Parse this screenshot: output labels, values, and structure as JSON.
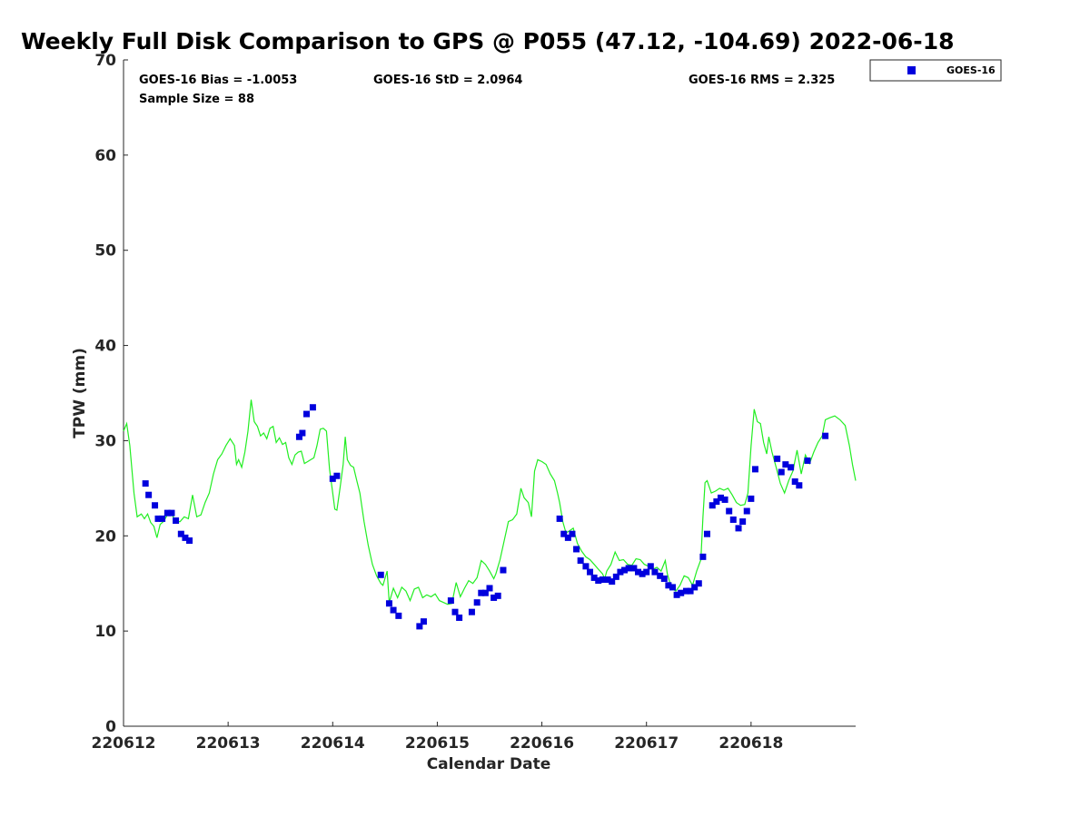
{
  "chart_data": {
    "type": "scatter",
    "title": "Weekly Full Disk Comparison to GPS @ P055 (47.12, -104.69) 2022-06-18",
    "xlabel": "Calendar Date",
    "ylabel": "TPW (mm)",
    "xlim": [
      0,
      7
    ],
    "ylim": [
      0,
      70
    ],
    "x_ticks": [
      0,
      1,
      2,
      3,
      4,
      5,
      6
    ],
    "x_tick_labels": [
      "220612",
      "220613",
      "220614",
      "220615",
      "220616",
      "220617",
      "220618"
    ],
    "y_ticks": [
      0,
      10,
      20,
      30,
      40,
      50,
      60,
      70
    ],
    "y_tick_labels": [
      "0",
      "10",
      "20",
      "30",
      "40",
      "50",
      "60",
      "70"
    ],
    "legend_position": "top-right, outside plot",
    "grid": false,
    "annotations": {
      "bias": "GOES-16 Bias = -1.0053",
      "std": "GOES-16 StD = 2.0964",
      "rms": "GOES-16 RMS = 2.325",
      "sample_size": "Sample Size = 88"
    },
    "series": [
      {
        "name": "GOES-16",
        "kind": "scatter",
        "marker": "square",
        "color": "#0000dd",
        "points": [
          [
            0.21,
            25.5
          ],
          [
            0.24,
            24.3
          ],
          [
            0.3,
            23.2
          ],
          [
            0.33,
            21.8
          ],
          [
            0.37,
            21.8
          ],
          [
            0.42,
            22.4
          ],
          [
            0.46,
            22.4
          ],
          [
            0.5,
            21.6
          ],
          [
            0.55,
            20.2
          ],
          [
            0.59,
            19.8
          ],
          [
            0.63,
            19.5
          ],
          [
            1.68,
            30.4
          ],
          [
            1.71,
            30.8
          ],
          [
            1.75,
            32.8
          ],
          [
            1.81,
            33.5
          ],
          [
            2.0,
            26.0
          ],
          [
            2.04,
            26.3
          ],
          [
            2.46,
            15.9
          ],
          [
            2.54,
            12.9
          ],
          [
            2.58,
            12.2
          ],
          [
            2.63,
            11.6
          ],
          [
            2.83,
            10.5
          ],
          [
            2.87,
            11.0
          ],
          [
            3.13,
            13.2
          ],
          [
            3.17,
            12.0
          ],
          [
            3.21,
            11.4
          ],
          [
            3.33,
            12.0
          ],
          [
            3.38,
            13.0
          ],
          [
            3.42,
            14.0
          ],
          [
            3.46,
            14.0
          ],
          [
            3.5,
            14.5
          ],
          [
            3.54,
            13.5
          ],
          [
            3.58,
            13.7
          ],
          [
            3.63,
            16.4
          ],
          [
            4.17,
            21.8
          ],
          [
            4.21,
            20.2
          ],
          [
            4.25,
            19.8
          ],
          [
            4.29,
            20.2
          ],
          [
            4.33,
            18.6
          ],
          [
            4.37,
            17.4
          ],
          [
            4.42,
            16.8
          ],
          [
            4.46,
            16.2
          ],
          [
            4.5,
            15.6
          ],
          [
            4.54,
            15.3
          ],
          [
            4.58,
            15.4
          ],
          [
            4.63,
            15.4
          ],
          [
            4.67,
            15.2
          ],
          [
            4.71,
            15.7
          ],
          [
            4.75,
            16.2
          ],
          [
            4.79,
            16.4
          ],
          [
            4.83,
            16.6
          ],
          [
            4.88,
            16.6
          ],
          [
            4.92,
            16.2
          ],
          [
            4.96,
            16.0
          ],
          [
            5.0,
            16.2
          ],
          [
            5.04,
            16.8
          ],
          [
            5.08,
            16.2
          ],
          [
            5.13,
            15.8
          ],
          [
            5.17,
            15.5
          ],
          [
            5.21,
            14.8
          ],
          [
            5.25,
            14.6
          ],
          [
            5.29,
            13.8
          ],
          [
            5.33,
            14.0
          ],
          [
            5.38,
            14.2
          ],
          [
            5.42,
            14.2
          ],
          [
            5.46,
            14.6
          ],
          [
            5.5,
            15.0
          ],
          [
            5.54,
            17.8
          ],
          [
            5.58,
            20.2
          ],
          [
            5.63,
            23.2
          ],
          [
            5.67,
            23.6
          ],
          [
            5.71,
            24.0
          ],
          [
            5.75,
            23.8
          ],
          [
            5.79,
            22.6
          ],
          [
            5.83,
            21.7
          ],
          [
            5.88,
            20.8
          ],
          [
            5.92,
            21.5
          ],
          [
            5.96,
            22.6
          ],
          [
            6.0,
            23.9
          ],
          [
            6.04,
            27.0
          ],
          [
            6.25,
            28.1
          ],
          [
            6.29,
            26.7
          ],
          [
            6.33,
            27.5
          ],
          [
            6.38,
            27.2
          ],
          [
            6.42,
            25.7
          ],
          [
            6.46,
            25.3
          ],
          [
            6.54,
            27.9
          ],
          [
            6.71,
            30.5
          ]
        ]
      },
      {
        "name": "",
        "kind": "line",
        "color": "#22ee22",
        "points": [
          [
            0.0,
            31.0
          ],
          [
            0.03,
            31.8
          ],
          [
            0.06,
            29.5
          ],
          [
            0.1,
            24.5
          ],
          [
            0.13,
            22.0
          ],
          [
            0.17,
            22.3
          ],
          [
            0.2,
            21.8
          ],
          [
            0.23,
            22.3
          ],
          [
            0.26,
            21.4
          ],
          [
            0.29,
            21.0
          ],
          [
            0.32,
            19.8
          ],
          [
            0.35,
            21.2
          ],
          [
            0.38,
            21.5
          ],
          [
            0.42,
            22.2
          ],
          [
            0.46,
            22.3
          ],
          [
            0.5,
            21.5
          ],
          [
            0.54,
            21.5
          ],
          [
            0.58,
            22.0
          ],
          [
            0.62,
            21.8
          ],
          [
            0.66,
            24.3
          ],
          [
            0.7,
            22.0
          ],
          [
            0.74,
            22.2
          ],
          [
            0.78,
            23.5
          ],
          [
            0.82,
            24.5
          ],
          [
            0.86,
            26.5
          ],
          [
            0.9,
            28.0
          ],
          [
            0.94,
            28.6
          ],
          [
            0.98,
            29.5
          ],
          [
            1.02,
            30.2
          ],
          [
            1.06,
            29.5
          ],
          [
            1.08,
            27.5
          ],
          [
            1.1,
            28.0
          ],
          [
            1.13,
            27.2
          ],
          [
            1.16,
            28.8
          ],
          [
            1.19,
            31.0
          ],
          [
            1.22,
            34.3
          ],
          [
            1.25,
            32.0
          ],
          [
            1.28,
            31.5
          ],
          [
            1.31,
            30.5
          ],
          [
            1.34,
            30.8
          ],
          [
            1.37,
            30.2
          ],
          [
            1.4,
            31.3
          ],
          [
            1.43,
            31.5
          ],
          [
            1.46,
            29.8
          ],
          [
            1.49,
            30.3
          ],
          [
            1.52,
            29.6
          ],
          [
            1.55,
            29.8
          ],
          [
            1.58,
            28.2
          ],
          [
            1.61,
            27.5
          ],
          [
            1.64,
            28.5
          ],
          [
            1.67,
            28.8
          ],
          [
            1.7,
            28.9
          ],
          [
            1.73,
            27.6
          ],
          [
            1.76,
            27.8
          ],
          [
            1.79,
            28.0
          ],
          [
            1.82,
            28.2
          ],
          [
            1.85,
            29.5
          ],
          [
            1.88,
            31.2
          ],
          [
            1.91,
            31.3
          ],
          [
            1.94,
            31.0
          ],
          [
            1.97,
            27.0
          ],
          [
            2.0,
            24.5
          ],
          [
            2.02,
            22.8
          ],
          [
            2.04,
            22.7
          ],
          [
            2.07,
            25.0
          ],
          [
            2.1,
            27.5
          ],
          [
            2.12,
            30.4
          ],
          [
            2.14,
            28.0
          ],
          [
            2.17,
            27.4
          ],
          [
            2.2,
            27.2
          ],
          [
            2.23,
            25.8
          ],
          [
            2.26,
            24.5
          ],
          [
            2.3,
            21.5
          ],
          [
            2.34,
            19.0
          ],
          [
            2.38,
            17.0
          ],
          [
            2.42,
            15.8
          ],
          [
            2.46,
            15.0
          ],
          [
            2.48,
            14.8
          ],
          [
            2.52,
            16.3
          ],
          [
            2.54,
            13.0
          ],
          [
            2.58,
            14.5
          ],
          [
            2.62,
            13.5
          ],
          [
            2.66,
            14.6
          ],
          [
            2.7,
            14.2
          ],
          [
            2.74,
            13.2
          ],
          [
            2.78,
            14.4
          ],
          [
            2.82,
            14.6
          ],
          [
            2.86,
            13.5
          ],
          [
            2.9,
            13.8
          ],
          [
            2.94,
            13.6
          ],
          [
            2.98,
            13.9
          ],
          [
            3.02,
            13.2
          ],
          [
            3.06,
            13.0
          ],
          [
            3.1,
            12.8
          ],
          [
            3.14,
            12.9
          ],
          [
            3.18,
            15.1
          ],
          [
            3.22,
            13.6
          ],
          [
            3.26,
            14.5
          ],
          [
            3.3,
            15.3
          ],
          [
            3.34,
            15.0
          ],
          [
            3.38,
            15.6
          ],
          [
            3.42,
            17.4
          ],
          [
            3.46,
            17.0
          ],
          [
            3.5,
            16.3
          ],
          [
            3.54,
            15.5
          ],
          [
            3.56,
            16.0
          ],
          [
            3.6,
            17.5
          ],
          [
            3.64,
            19.5
          ],
          [
            3.68,
            21.5
          ],
          [
            3.72,
            21.7
          ],
          [
            3.76,
            22.3
          ],
          [
            3.8,
            25.0
          ],
          [
            3.83,
            24.0
          ],
          [
            3.87,
            23.5
          ],
          [
            3.9,
            22.0
          ],
          [
            3.93,
            26.8
          ],
          [
            3.96,
            28.0
          ],
          [
            4.0,
            27.8
          ],
          [
            4.04,
            27.5
          ],
          [
            4.08,
            26.5
          ],
          [
            4.12,
            25.8
          ],
          [
            4.15,
            24.5
          ],
          [
            4.17,
            23.5
          ],
          [
            4.2,
            21.5
          ],
          [
            4.23,
            20.3
          ],
          [
            4.26,
            20.5
          ],
          [
            4.3,
            20.8
          ],
          [
            4.34,
            19.2
          ],
          [
            4.38,
            18.4
          ],
          [
            4.42,
            17.8
          ],
          [
            4.46,
            17.5
          ],
          [
            4.5,
            17.0
          ],
          [
            4.54,
            16.5
          ],
          [
            4.58,
            16.0
          ],
          [
            4.6,
            15.5
          ],
          [
            4.62,
            16.3
          ],
          [
            4.66,
            17.0
          ],
          [
            4.7,
            18.3
          ],
          [
            4.74,
            17.4
          ],
          [
            4.78,
            17.5
          ],
          [
            4.82,
            17.0
          ],
          [
            4.86,
            16.9
          ],
          [
            4.9,
            17.6
          ],
          [
            4.94,
            17.5
          ],
          [
            4.98,
            17.0
          ],
          [
            5.02,
            16.8
          ],
          [
            5.06,
            16.5
          ],
          [
            5.1,
            16.7
          ],
          [
            5.14,
            16.3
          ],
          [
            5.18,
            17.4
          ],
          [
            5.2,
            16.0
          ],
          [
            5.24,
            14.5
          ],
          [
            5.28,
            14.2
          ],
          [
            5.32,
            14.8
          ],
          [
            5.36,
            15.8
          ],
          [
            5.4,
            15.6
          ],
          [
            5.44,
            14.8
          ],
          [
            5.48,
            16.3
          ],
          [
            5.52,
            17.5
          ],
          [
            5.54,
            22.0
          ],
          [
            5.56,
            25.6
          ],
          [
            5.58,
            25.8
          ],
          [
            5.62,
            24.5
          ],
          [
            5.66,
            24.7
          ],
          [
            5.7,
            25.0
          ],
          [
            5.74,
            24.8
          ],
          [
            5.78,
            25.0
          ],
          [
            5.82,
            24.3
          ],
          [
            5.86,
            23.5
          ],
          [
            5.9,
            23.2
          ],
          [
            5.94,
            23.3
          ],
          [
            5.97,
            24.5
          ],
          [
            6.0,
            29.5
          ],
          [
            6.03,
            33.3
          ],
          [
            6.06,
            32.0
          ],
          [
            6.09,
            31.8
          ],
          [
            6.12,
            29.8
          ],
          [
            6.15,
            28.6
          ],
          [
            6.17,
            30.4
          ],
          [
            6.2,
            28.8
          ],
          [
            6.24,
            27.2
          ],
          [
            6.28,
            25.5
          ],
          [
            6.32,
            24.5
          ],
          [
            6.36,
            25.8
          ],
          [
            6.4,
            26.8
          ],
          [
            6.44,
            29.0
          ],
          [
            6.48,
            26.5
          ],
          [
            6.52,
            28.5
          ],
          [
            6.56,
            27.6
          ],
          [
            6.6,
            28.8
          ],
          [
            6.64,
            29.8
          ],
          [
            6.68,
            30.5
          ],
          [
            6.71,
            32.2
          ],
          [
            6.75,
            32.4
          ],
          [
            6.8,
            32.6
          ],
          [
            6.85,
            32.2
          ],
          [
            6.9,
            31.6
          ],
          [
            6.94,
            29.5
          ],
          [
            6.97,
            27.5
          ],
          [
            7.0,
            25.8
          ]
        ]
      }
    ]
  }
}
